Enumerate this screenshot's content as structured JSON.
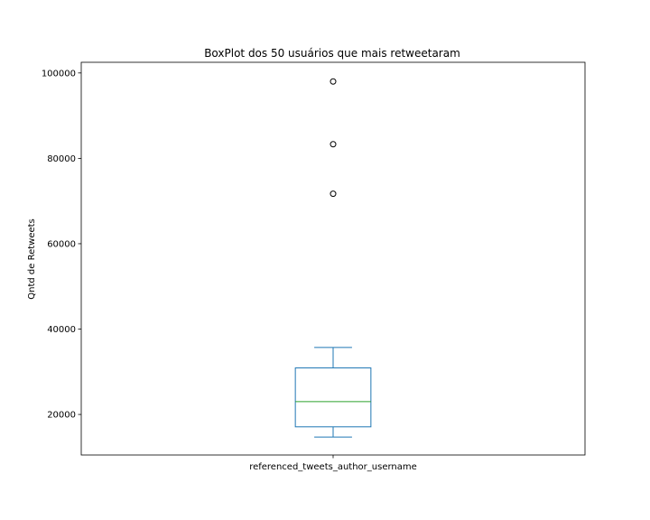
{
  "chart_data": {
    "type": "box",
    "title": "BoxPlot dos 50 usuários que mais retweetaram",
    "xlabel": "",
    "ylabel": "Qntd de Retweets",
    "categories": [
      "referenced_tweets_author_username"
    ],
    "ylim": [
      10500,
      102500
    ],
    "yticks": [
      20000,
      40000,
      60000,
      80000,
      100000
    ],
    "grid": false,
    "boxes": [
      {
        "name": "referenced_tweets_author_username",
        "whisker_low": 14700,
        "q1": 17100,
        "median": 23000,
        "q3": 30900,
        "whisker_high": 35700,
        "outliers": [
          71700,
          83300,
          98000
        ]
      }
    ],
    "colors": {
      "box": "#1f77b4",
      "median": "#2ca02c",
      "outlier": "#000000"
    }
  }
}
